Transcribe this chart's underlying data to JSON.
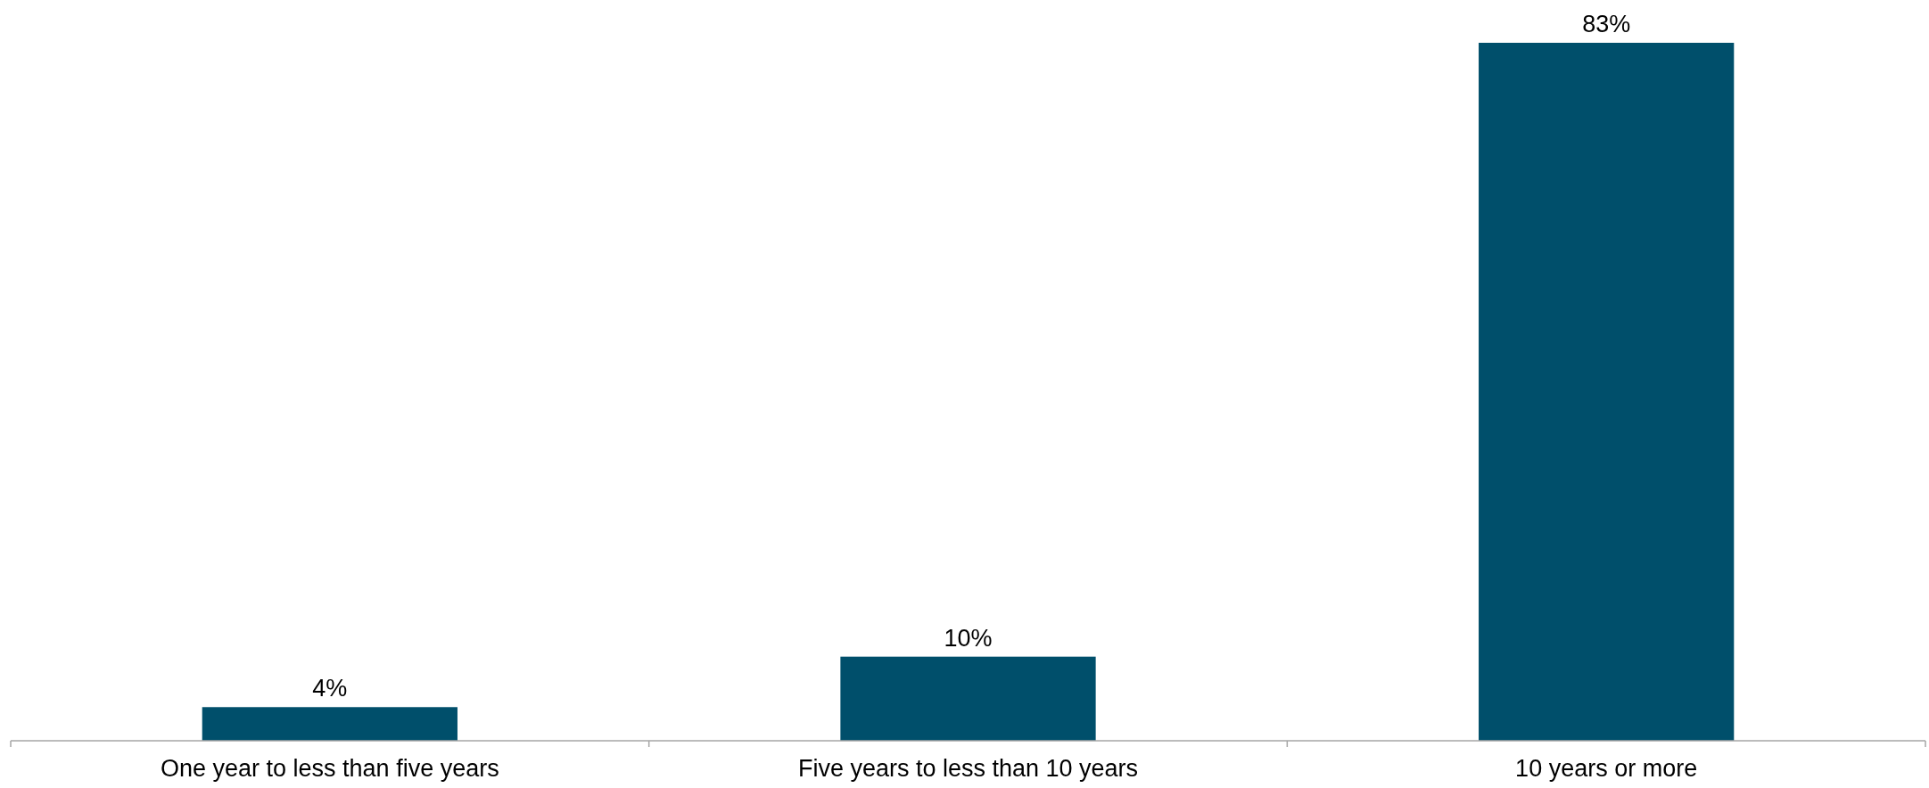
{
  "chart_data": {
    "type": "bar",
    "categories": [
      "One year to less than five years",
      "Five years to less than 10 years",
      "10 years or more"
    ],
    "values": [
      4,
      10,
      83
    ],
    "color": "#004f6b",
    "value_labels": [
      "4%",
      "10%",
      "83%"
    ]
  }
}
